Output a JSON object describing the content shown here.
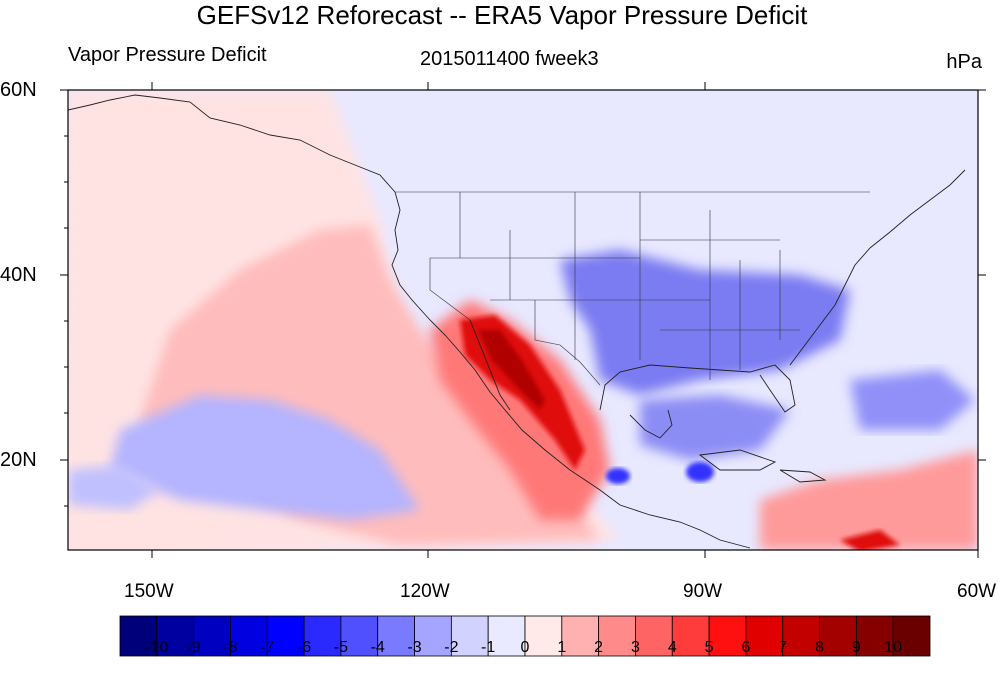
{
  "title": "GEFSv12 Reforecast -- ERA5 Vapor Pressure Deficit",
  "left_subtitle": "Vapor Pressure Deficit",
  "center_subtitle": "2015011400 fweek3",
  "units": "hPa",
  "map": {
    "lat_labels": [
      "60N",
      "40N",
      "20N"
    ],
    "lon_labels": [
      "150W",
      "120W",
      "90W",
      "60W"
    ],
    "lat_range": [
      10,
      60
    ],
    "lon_range": [
      -160,
      -60
    ]
  },
  "colorbar": {
    "labels": [
      "-10",
      "-9",
      "-8",
      "-7",
      "-6",
      "-5",
      "-4",
      "-3",
      "-2",
      "-1",
      "0",
      "1",
      "2",
      "3",
      "4",
      "5",
      "6",
      "7",
      "8",
      "9",
      "10"
    ],
    "colors": [
      "#00007a",
      "#0000a0",
      "#0000c0",
      "#0000e0",
      "#0000ff",
      "#2a2aff",
      "#5050ff",
      "#7a7aff",
      "#a5a5ff",
      "#d2d2ff",
      "#e9e9ff",
      "#ffe9e9",
      "#ffb0b0",
      "#ff8a8a",
      "#ff6464",
      "#ff3c3c",
      "#ff1010",
      "#e00000",
      "#c20000",
      "#a30000",
      "#860000",
      "#6a0000"
    ]
  },
  "colors": {
    "land_line": "#222222",
    "ocean_tint": "#e8e8ff",
    "pacific_tint": "#ffe6e6"
  }
}
